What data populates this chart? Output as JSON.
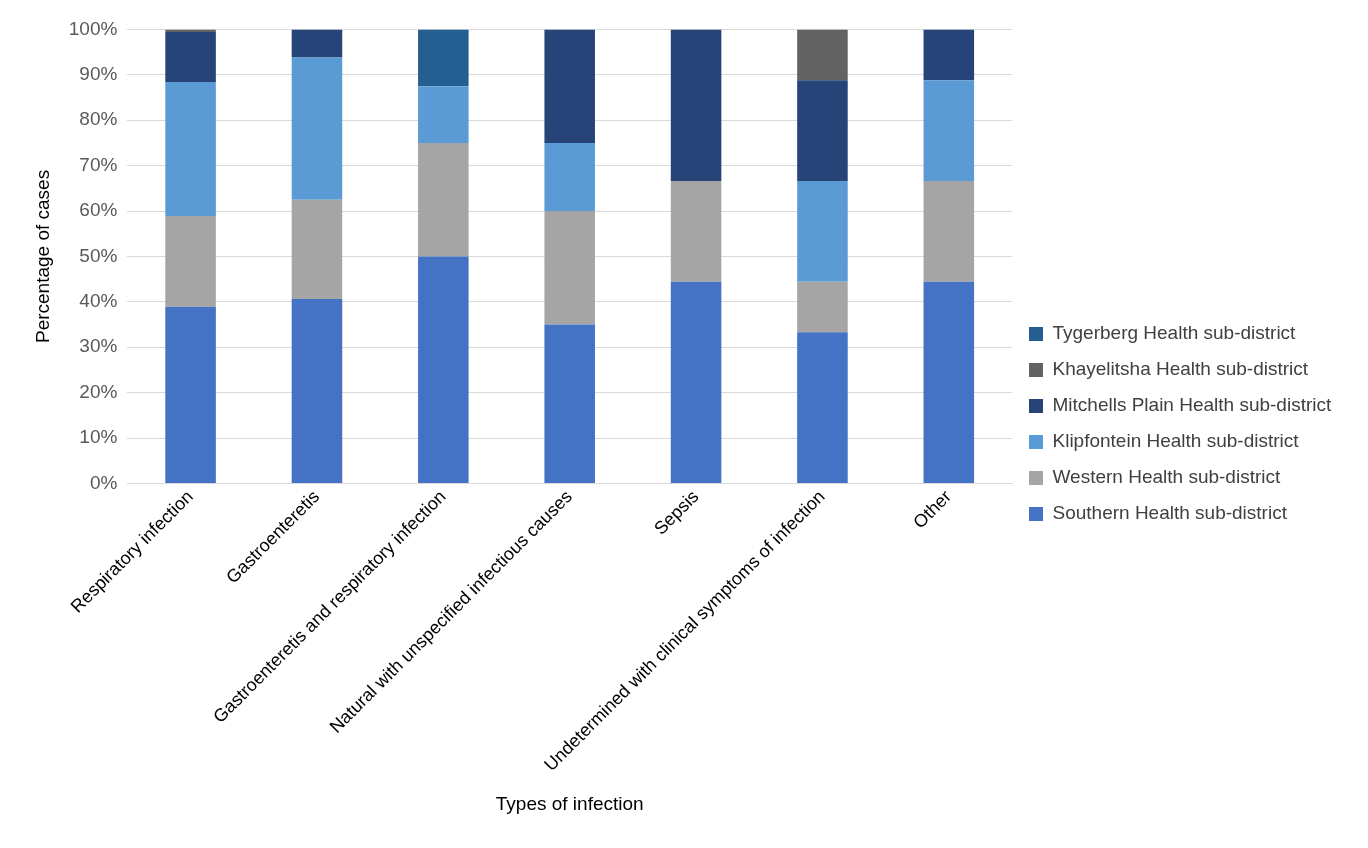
{
  "chart_data": {
    "type": "bar",
    "stacked": true,
    "xlabel": "Types of infection",
    "ylabel": "Percentage of cases",
    "categories": [
      "Respiratory infection",
      "Gastroenteretis",
      "Gastroenteretis and respiratory infection",
      "Natural with unspecified infectious causes",
      "Sepsis",
      "Undetermined with clinical symptoms of infection",
      "Other"
    ],
    "series": [
      {
        "name": "Southern Health sub-district",
        "color": "#4472c4",
        "values": [
          38.9,
          40.6,
          50,
          35,
          44.4,
          33.3,
          44.4
        ]
      },
      {
        "name": "Western Health sub-district",
        "color": "#a5a5a5",
        "values": [
          20,
          21.9,
          25,
          25,
          22.2,
          11.1,
          22.2
        ]
      },
      {
        "name": "Klipfontein Health sub-district",
        "color": "#5b9bd5",
        "values": [
          29.5,
          31.3,
          12.5,
          15,
          0,
          22.2,
          22.2
        ]
      },
      {
        "name": "Mitchells Plain Health sub-district",
        "color": "#264478",
        "values": [
          11,
          6.2,
          0,
          25,
          33.4,
          22.2,
          11.2
        ]
      },
      {
        "name": "Khayelitsha Health sub-district",
        "color": "#636363",
        "values": [
          0.6,
          0,
          0,
          0,
          0,
          11.2,
          0
        ]
      },
      {
        "name": "Tygerberg Health sub-district",
        "color": "#255e91",
        "values": [
          0,
          0,
          12.5,
          0,
          0,
          0,
          0
        ]
      }
    ],
    "ylim": [
      0,
      100
    ],
    "yticks": [
      {
        "value": 0,
        "label": "0%"
      },
      {
        "value": 10,
        "label": "10%"
      },
      {
        "value": 20,
        "label": "20%"
      },
      {
        "value": 30,
        "label": "30%"
      },
      {
        "value": 40,
        "label": "40%"
      },
      {
        "value": 50,
        "label": "50%"
      },
      {
        "value": 60,
        "label": "60%"
      },
      {
        "value": 70,
        "label": "70%"
      },
      {
        "value": 80,
        "label": "80%"
      },
      {
        "value": 90,
        "label": "90%"
      },
      {
        "value": 100,
        "label": "100%"
      }
    ],
    "grid": "y",
    "legend": "right"
  }
}
